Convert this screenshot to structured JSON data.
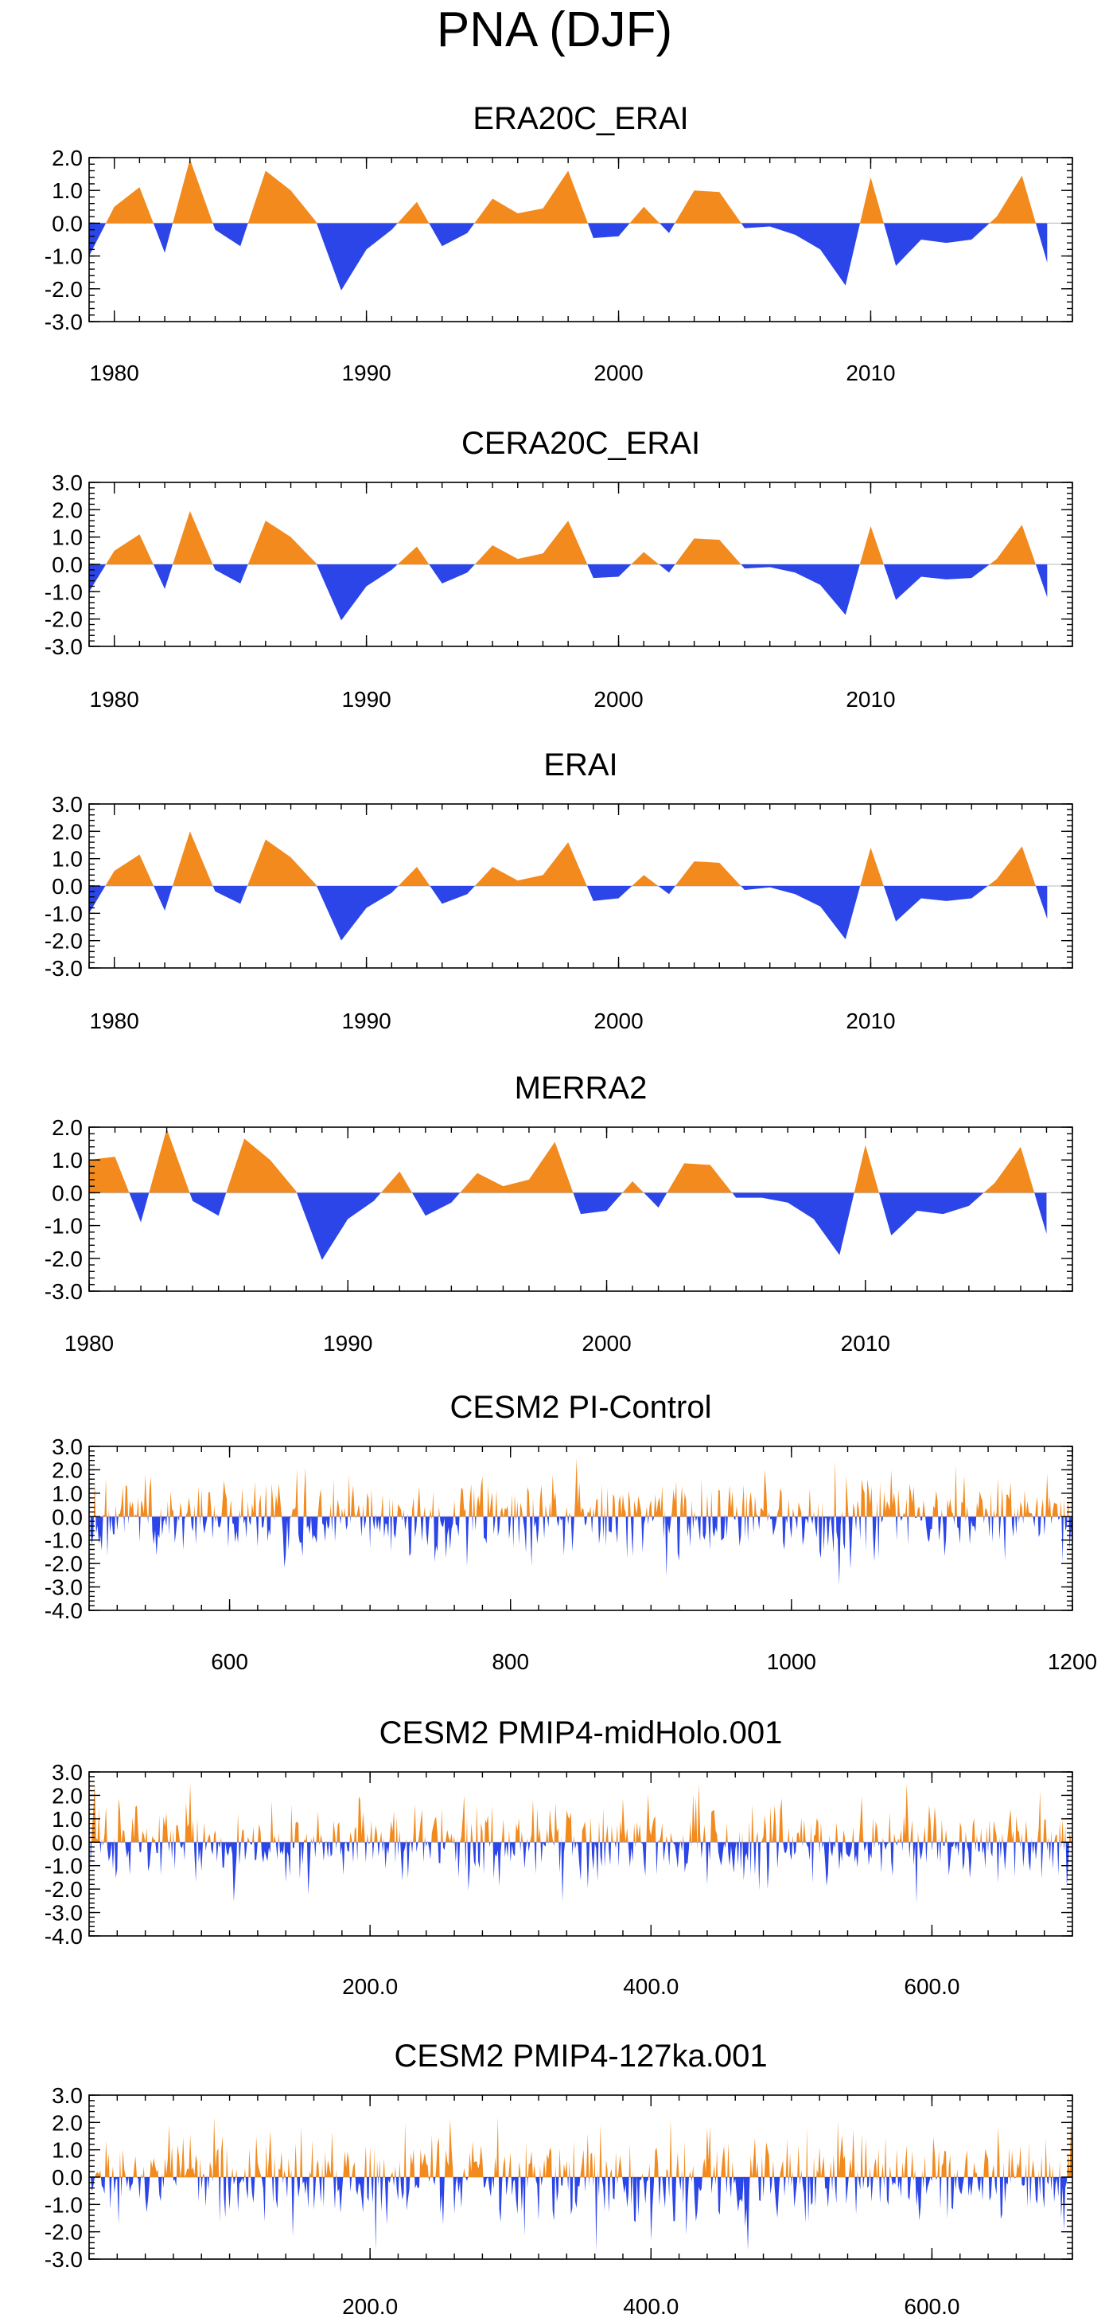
{
  "figure": {
    "title": "PNA (DJF)"
  },
  "colors": {
    "positive": "#f28a1e",
    "negative": "#2b45e8",
    "axis": "#000000",
    "zero_line": "#c8c8c8"
  },
  "chart_data": [
    {
      "type": "area",
      "title": "ERA20C_ERAI",
      "x": [
        1979,
        1980,
        1981,
        1982,
        1983,
        1984,
        1985,
        1986,
        1987,
        1988,
        1989,
        1990,
        1991,
        1992,
        1993,
        1994,
        1995,
        1996,
        1997,
        1998,
        1999,
        2000,
        2001,
        2002,
        2003,
        2004,
        2005,
        2006,
        2007,
        2008,
        2009,
        2010,
        2011,
        2012,
        2013,
        2014,
        2015,
        2016,
        2017
      ],
      "values": [
        -1.0,
        0.5,
        1.1,
        -0.9,
        1.95,
        -0.2,
        -0.7,
        1.6,
        1.0,
        0.05,
        -2.05,
        -0.8,
        -0.2,
        0.65,
        -0.7,
        -0.3,
        0.75,
        0.3,
        0.45,
        1.6,
        -0.45,
        -0.4,
        0.5,
        -0.3,
        1.0,
        0.95,
        -0.15,
        -0.1,
        -0.35,
        -0.8,
        -1.9,
        1.4,
        -1.3,
        -0.5,
        -0.6,
        -0.5,
        0.2,
        1.45,
        -1.2
      ],
      "xlim": [
        1979,
        2018
      ],
      "ylim": [
        -3,
        2
      ],
      "yticks": [
        2.0,
        1.0,
        0.0,
        -1.0,
        -2.0,
        -3.0
      ],
      "ytick_labels": [
        "2.0",
        "1.0",
        "0.0",
        "-1.0",
        "-2.0",
        "-3.0"
      ],
      "xticks": [
        1980,
        1990,
        2000,
        2010
      ],
      "xtick_labels": [
        "1980",
        "1990",
        "2000",
        "2010"
      ],
      "xminor_step": 1,
      "yminor_step": 0.2
    },
    {
      "type": "area",
      "title": "CERA20C_ERAI",
      "x": [
        1979,
        1980,
        1981,
        1982,
        1983,
        1984,
        1985,
        1986,
        1987,
        1988,
        1989,
        1990,
        1991,
        1992,
        1993,
        1994,
        1995,
        1996,
        1997,
        1998,
        1999,
        2000,
        2001,
        2002,
        2003,
        2004,
        2005,
        2006,
        2007,
        2008,
        2009,
        2010,
        2011,
        2012,
        2013,
        2014,
        2015,
        2016,
        2017
      ],
      "values": [
        -1.0,
        0.5,
        1.1,
        -0.9,
        1.95,
        -0.2,
        -0.7,
        1.6,
        1.0,
        0.05,
        -2.05,
        -0.8,
        -0.2,
        0.65,
        -0.7,
        -0.3,
        0.7,
        0.2,
        0.4,
        1.6,
        -0.5,
        -0.45,
        0.45,
        -0.3,
        0.95,
        0.9,
        -0.15,
        -0.1,
        -0.3,
        -0.75,
        -1.85,
        1.4,
        -1.3,
        -0.45,
        -0.55,
        -0.5,
        0.2,
        1.45,
        -1.2
      ],
      "xlim": [
        1979,
        2018
      ],
      "ylim": [
        -3,
        3
      ],
      "yticks": [
        3.0,
        2.0,
        1.0,
        0.0,
        -1.0,
        -2.0,
        -3.0
      ],
      "ytick_labels": [
        "3.0",
        "2.0",
        "1.0",
        "0.0",
        "-1.0",
        "-2.0",
        "-3.0"
      ],
      "xticks": [
        1980,
        1990,
        2000,
        2010
      ],
      "xtick_labels": [
        "1980",
        "1990",
        "2000",
        "2010"
      ],
      "xminor_step": 1,
      "yminor_step": 0.2
    },
    {
      "type": "area",
      "title": "ERAI",
      "x": [
        1979,
        1980,
        1981,
        1982,
        1983,
        1984,
        1985,
        1986,
        1987,
        1988,
        1989,
        1990,
        1991,
        1992,
        1993,
        1994,
        1995,
        1996,
        1997,
        1998,
        1999,
        2000,
        2001,
        2002,
        2003,
        2004,
        2005,
        2006,
        2007,
        2008,
        2009,
        2010,
        2011,
        2012,
        2013,
        2014,
        2015,
        2016,
        2017
      ],
      "values": [
        -1.0,
        0.55,
        1.15,
        -0.9,
        2.0,
        -0.2,
        -0.65,
        1.7,
        1.05,
        0.05,
        -2.0,
        -0.8,
        -0.25,
        0.7,
        -0.65,
        -0.3,
        0.7,
        0.2,
        0.4,
        1.6,
        -0.55,
        -0.45,
        0.4,
        -0.3,
        0.9,
        0.85,
        -0.15,
        -0.05,
        -0.3,
        -0.75,
        -1.95,
        1.4,
        -1.3,
        -0.45,
        -0.55,
        -0.45,
        0.25,
        1.45,
        -1.2
      ],
      "xlim": [
        1979,
        2018
      ],
      "ylim": [
        -3,
        3
      ],
      "yticks": [
        3.0,
        2.0,
        1.0,
        0.0,
        -1.0,
        -2.0,
        -3.0
      ],
      "ytick_labels": [
        "3.0",
        "2.0",
        "1.0",
        "0.0",
        "-1.0",
        "-2.0",
        "-3.0"
      ],
      "xticks": [
        1980,
        1990,
        2000,
        2010
      ],
      "xtick_labels": [
        "1980",
        "1990",
        "2000",
        "2010"
      ],
      "xminor_step": 1,
      "yminor_step": 0.2
    },
    {
      "type": "area",
      "title": "MERRA2",
      "x": [
        1980,
        1981,
        1982,
        1983,
        1984,
        1985,
        1986,
        1987,
        1988,
        1989,
        1990,
        1991,
        1992,
        1993,
        1994,
        1995,
        1996,
        1997,
        1998,
        1999,
        2000,
        2001,
        2002,
        2003,
        2004,
        2005,
        2006,
        2007,
        2008,
        2009,
        2010,
        2011,
        2012,
        2013,
        2014,
        2015,
        2016,
        2017
      ],
      "values": [
        1.0,
        1.1,
        -0.9,
        1.95,
        -0.25,
        -0.7,
        1.65,
        1.0,
        0.05,
        -2.05,
        -0.8,
        -0.25,
        0.65,
        -0.7,
        -0.3,
        0.6,
        0.2,
        0.4,
        1.55,
        -0.65,
        -0.55,
        0.35,
        -0.45,
        0.9,
        0.85,
        -0.15,
        -0.15,
        -0.3,
        -0.8,
        -1.9,
        1.45,
        -1.3,
        -0.55,
        -0.65,
        -0.4,
        0.3,
        1.4,
        -1.25
      ],
      "xlim": [
        1980,
        2018
      ],
      "ylim": [
        -3,
        2
      ],
      "yticks": [
        2.0,
        1.0,
        0.0,
        -1.0,
        -2.0,
        -3.0
      ],
      "ytick_labels": [
        "2.0",
        "1.0",
        "0.0",
        "-1.0",
        "-2.0",
        "-3.0"
      ],
      "xticks": [
        1980,
        1990,
        2000,
        2010
      ],
      "xtick_labels": [
        "1980",
        "1990",
        "2000",
        "2010"
      ],
      "xminor_step": 1,
      "yminor_step": 0.2
    },
    {
      "type": "area",
      "title": "CESM2 PI-Control",
      "series_model": {
        "x_start": 501,
        "count": 700,
        "note": "annual index sampled every model year"
      },
      "xlim": [
        500,
        1200
      ],
      "ylim": [
        -4,
        3
      ],
      "yticks": [
        3.0,
        2.0,
        1.0,
        0.0,
        -1.0,
        -2.0,
        -3.0,
        -4.0
      ],
      "ytick_labels": [
        "3.0",
        "2.0",
        "1.0",
        "0.0",
        "-1.0",
        "-2.0",
        "-3.0",
        "-4.0"
      ],
      "xticks": [
        600,
        800,
        1000,
        1200
      ],
      "xtick_labels": [
        "600",
        "800",
        "1000",
        "1200"
      ],
      "xminor_step": 20,
      "yminor_step": 0.2
    },
    {
      "type": "area",
      "title": "CESM2 PMIP4-midHolo.001",
      "series_model": {
        "x_start": 1,
        "count": 700,
        "note": "annual index sampled every model year"
      },
      "xlim": [
        0,
        700
      ],
      "ylim": [
        -4,
        3
      ],
      "yticks": [
        3.0,
        2.0,
        1.0,
        0.0,
        -1.0,
        -2.0,
        -3.0,
        -4.0
      ],
      "ytick_labels": [
        "3.0",
        "2.0",
        "1.0",
        "0.0",
        "-1.0",
        "-2.0",
        "-3.0",
        "-4.0"
      ],
      "xticks": [
        200,
        400,
        600
      ],
      "xtick_labels": [
        "200.0",
        "400.0",
        "600.0"
      ],
      "xminor_step": 20,
      "yminor_step": 0.2
    },
    {
      "type": "area",
      "title": "CESM2 PMIP4-127ka.001",
      "series_model": {
        "x_start": 1,
        "count": 700,
        "note": "annual index sampled every model year"
      },
      "xlim": [
        0,
        700
      ],
      "ylim": [
        -3,
        3
      ],
      "yticks": [
        3.0,
        2.0,
        1.0,
        0.0,
        -1.0,
        -2.0,
        -3.0
      ],
      "ytick_labels": [
        "3.0",
        "2.0",
        "1.0",
        "0.0",
        "-1.0",
        "-2.0",
        "-3.0"
      ],
      "xticks": [
        200,
        400,
        600
      ],
      "xtick_labels": [
        "200.0",
        "400.0",
        "600.0"
      ],
      "xminor_step": 20,
      "yminor_step": 0.2
    }
  ]
}
